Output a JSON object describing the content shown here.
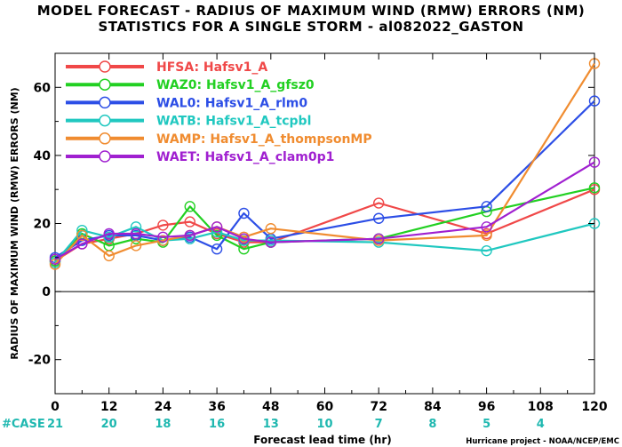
{
  "chart_data": {
    "type": "line",
    "title": "MODEL FORECAST - RADIUS OF MAXIMUM WIND (RMW) ERRORS (NM)",
    "subtitle": "STATISTICS FOR A SINGLE STORM - al082022_GASTON",
    "xlabel": "Forecast lead time (hr)",
    "ylabel": "RADIUS OF MAXIMUM WIND (RMW) ERRORS (NM)",
    "xlim": [
      0,
      120
    ],
    "ylim": [
      -30,
      70
    ],
    "xticks": [
      0,
      12,
      24,
      36,
      48,
      60,
      72,
      84,
      96,
      108,
      120
    ],
    "yticks": [
      -20,
      0,
      20,
      40,
      60
    ],
    "ytick_labels": [
      "-20",
      "0",
      "20",
      "40",
      "60"
    ],
    "zero_line": true,
    "legend_position": "top-left",
    "case_label": "#CASE",
    "case_counts": [
      {
        "x": 0,
        "label": "21"
      },
      {
        "x": 12,
        "label": "20"
      },
      {
        "x": 24,
        "label": "18"
      },
      {
        "x": 36,
        "label": "16"
      },
      {
        "x": 48,
        "label": "13"
      },
      {
        "x": 60,
        "label": "10"
      },
      {
        "x": 72,
        "label": "7"
      },
      {
        "x": 84,
        "label": "8"
      },
      {
        "x": 96,
        "label": "5"
      },
      {
        "x": 108,
        "label": "4"
      }
    ],
    "credit": "Hurricane project - NOAA/NCEP/EMC",
    "series": [
      {
        "name": "HFSA: Hafsv1_A",
        "color": "#f04848",
        "x": [
          0,
          6,
          12,
          18,
          24,
          30,
          36,
          42,
          48,
          72,
          96,
          120
        ],
        "y": [
          9,
          14,
          15.5,
          17,
          19.5,
          20.5,
          17,
          14.5,
          14.5,
          26,
          17,
          30
        ]
      },
      {
        "name": "WAZ0: Hafsv1_A_gfsz0",
        "color": "#22d022",
        "x": [
          0,
          6,
          12,
          18,
          24,
          30,
          36,
          42,
          48,
          72,
          96,
          120
        ],
        "y": [
          9,
          17,
          13.5,
          15.5,
          14.5,
          25,
          16.5,
          12.5,
          14.5,
          15.5,
          23.5,
          30.5
        ]
      },
      {
        "name": "WAL0: Hafsv1_A_rlm0",
        "color": "#2c4ee6",
        "x": [
          0,
          6,
          12,
          18,
          24,
          30,
          36,
          42,
          48,
          72,
          96,
          120
        ],
        "y": [
          10,
          15,
          16.5,
          16.5,
          15,
          16,
          12.5,
          23,
          15.5,
          21.5,
          25,
          56
        ]
      },
      {
        "name": "WATB: Hafsv1_A_tcpbl",
        "color": "#20c8c0",
        "x": [
          0,
          6,
          12,
          18,
          24,
          30,
          36,
          42,
          48,
          72,
          96,
          120
        ],
        "y": [
          8.5,
          18,
          16,
          19,
          15,
          15.5,
          17.5,
          15,
          15,
          14.5,
          12,
          20
        ]
      },
      {
        "name": "WAMP: Hafsv1_A_thompsonMP",
        "color": "#f08c30",
        "x": [
          0,
          6,
          12,
          18,
          24,
          30,
          36,
          42,
          48,
          72,
          96,
          120
        ],
        "y": [
          8,
          16.5,
          10.5,
          13.5,
          15,
          16.5,
          19,
          16,
          18.5,
          15,
          16.5,
          67
        ]
      },
      {
        "name": "WAET: Hafsv1_A_clam0p1",
        "color": "#a020d0",
        "x": [
          0,
          6,
          12,
          18,
          24,
          30,
          36,
          42,
          48,
          72,
          96,
          120
        ],
        "y": [
          9.5,
          14,
          17,
          17,
          16,
          16.5,
          19,
          15.5,
          14.5,
          15.5,
          19,
          38
        ]
      }
    ]
  }
}
